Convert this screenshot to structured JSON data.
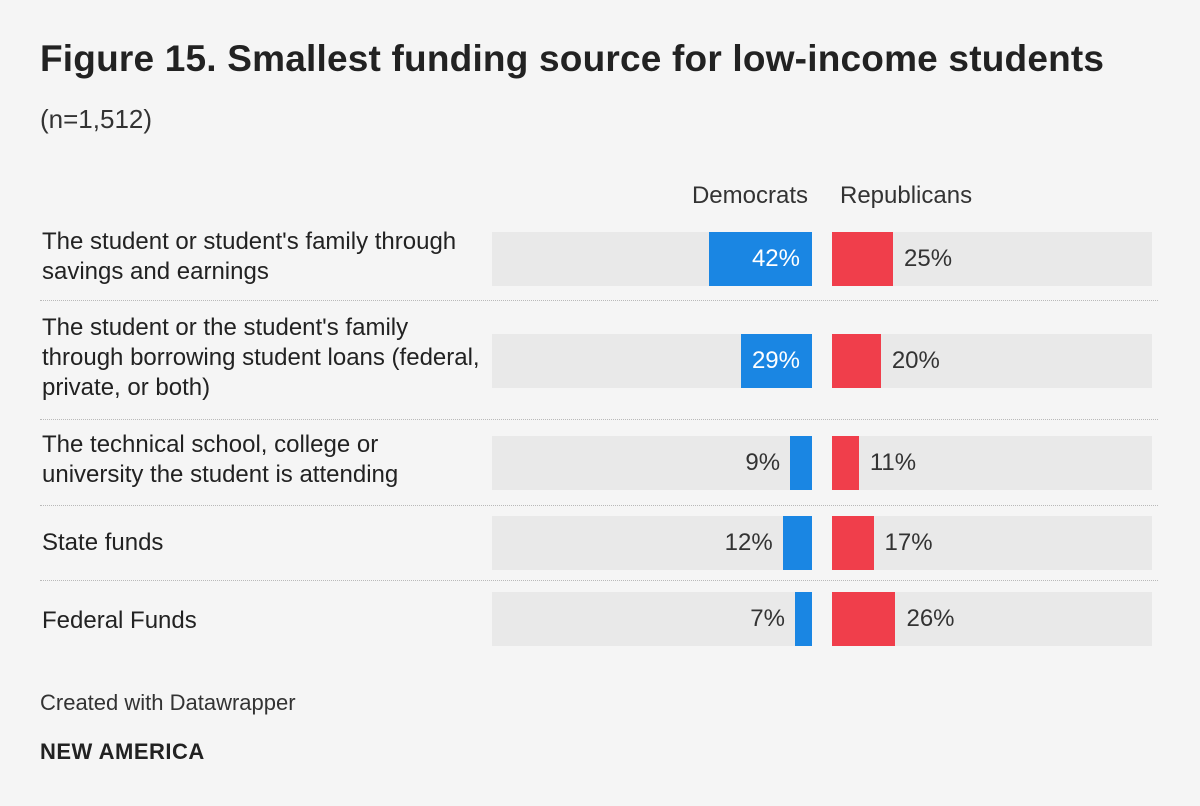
{
  "chart_data": {
    "type": "bar",
    "title": "Figure 15. Smallest funding source for low-income students",
    "subtitle": "(n=1,512)",
    "categories": [
      "The student or student's family through savings and earnings",
      "The student or the student's family through borrowing student loans (federal, private, or both)",
      "The technical school, college or university the student is attending",
      "State funds",
      "Federal Funds"
    ],
    "series": [
      {
        "name": "Democrats",
        "values": [
          42,
          29,
          9,
          12,
          7
        ],
        "labels": [
          "42%",
          "29%",
          "9%",
          "12%",
          "7%"
        ],
        "color": "#1a86e3"
      },
      {
        "name": "Republicans",
        "values": [
          25,
          20,
          11,
          17,
          26
        ],
        "labels": [
          "25%",
          "20%",
          "11%",
          "17%",
          "26%"
        ],
        "color": "#f03e4b"
      }
    ],
    "xlim": [
      0,
      100
    ],
    "xlabel": "",
    "ylabel": ""
  },
  "footer": {
    "note": "Created with Datawrapper",
    "brand": "NEW AMERICA"
  }
}
